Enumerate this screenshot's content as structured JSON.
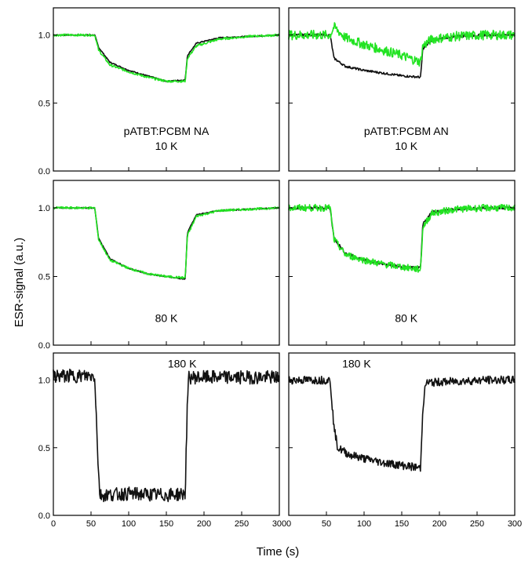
{
  "figure": {
    "xlabel": "Time (s)",
    "ylabel": "ESR-signal (a.u.)",
    "series_colors": {
      "black": "#111111",
      "green": "#22e322"
    }
  },
  "chart_data": [
    {
      "type": "line",
      "row": 0,
      "col": 0,
      "annotations": [
        "pATBT:PCBM NA",
        "10 K"
      ],
      "xlim": [
        0,
        300
      ],
      "ylim": [
        0,
        1.2
      ],
      "yticks": [
        "0.0",
        "0.5",
        "1.0"
      ],
      "xticks": [],
      "series": [
        {
          "color": "black",
          "noise": 0.004,
          "x": [
            0,
            55,
            60,
            75,
            100,
            125,
            150,
            175,
            178,
            190,
            220,
            260,
            300
          ],
          "y": [
            1.0,
            1.0,
            0.91,
            0.8,
            0.74,
            0.7,
            0.66,
            0.67,
            0.85,
            0.94,
            0.98,
            0.99,
            1.0
          ]
        },
        {
          "color": "green",
          "noise": 0.008,
          "x": [
            0,
            55,
            60,
            75,
            100,
            125,
            150,
            175,
            178,
            190,
            220,
            260,
            300
          ],
          "y": [
            1.0,
            1.0,
            0.89,
            0.78,
            0.73,
            0.69,
            0.66,
            0.66,
            0.83,
            0.92,
            0.97,
            0.99,
            1.0
          ]
        }
      ]
    },
    {
      "type": "line",
      "row": 0,
      "col": 1,
      "annotations": [
        "pATBT:PCBM AN",
        "10 K"
      ],
      "xlim": [
        0,
        300
      ],
      "ylim": [
        0,
        1.2
      ],
      "yticks": [],
      "xticks": [],
      "series": [
        {
          "color": "black",
          "noise": 0.008,
          "x": [
            0,
            55,
            60,
            75,
            100,
            125,
            150,
            175,
            178,
            190,
            220,
            260,
            300
          ],
          "y": [
            1.0,
            1.0,
            0.83,
            0.77,
            0.74,
            0.72,
            0.7,
            0.69,
            0.9,
            0.96,
            0.99,
            1.0,
            1.0
          ]
        },
        {
          "color": "green",
          "noise": 0.035,
          "x": [
            0,
            55,
            60,
            75,
            100,
            125,
            150,
            175,
            178,
            190,
            220,
            260,
            300
          ],
          "y": [
            1.0,
            1.0,
            1.06,
            0.98,
            0.93,
            0.89,
            0.85,
            0.8,
            0.92,
            0.97,
            0.99,
            1.0,
            1.0
          ]
        }
      ]
    },
    {
      "type": "line",
      "row": 1,
      "col": 0,
      "annotations": [
        "80 K"
      ],
      "xlim": [
        0,
        300
      ],
      "ylim": [
        0,
        1.2
      ],
      "yticks": [
        "0.0",
        "0.5",
        "1.0"
      ],
      "xticks": [],
      "series": [
        {
          "color": "black",
          "noise": 0.004,
          "x": [
            0,
            55,
            60,
            75,
            100,
            125,
            150,
            175,
            178,
            190,
            220,
            260,
            300
          ],
          "y": [
            1.0,
            1.0,
            0.78,
            0.63,
            0.56,
            0.52,
            0.5,
            0.48,
            0.82,
            0.95,
            0.98,
            0.99,
            1.0
          ]
        },
        {
          "color": "green",
          "noise": 0.008,
          "x": [
            0,
            55,
            60,
            75,
            100,
            125,
            150,
            175,
            178,
            190,
            220,
            260,
            300
          ],
          "y": [
            1.0,
            1.0,
            0.77,
            0.62,
            0.56,
            0.52,
            0.5,
            0.49,
            0.8,
            0.94,
            0.98,
            0.99,
            1.0
          ]
        }
      ]
    },
    {
      "type": "line",
      "row": 1,
      "col": 1,
      "annotations": [
        "80 K"
      ],
      "xlim": [
        0,
        300
      ],
      "ylim": [
        0,
        1.2
      ],
      "yticks": [],
      "xticks": [],
      "series": [
        {
          "color": "black",
          "noise": 0.01,
          "x": [
            0,
            55,
            60,
            75,
            100,
            125,
            150,
            175,
            178,
            190,
            220,
            260,
            300
          ],
          "y": [
            1.0,
            1.0,
            0.78,
            0.67,
            0.62,
            0.59,
            0.57,
            0.56,
            0.88,
            0.97,
            0.99,
            1.0,
            1.0
          ]
        },
        {
          "color": "green",
          "noise": 0.025,
          "x": [
            0,
            55,
            60,
            75,
            100,
            125,
            150,
            175,
            178,
            190,
            220,
            260,
            300
          ],
          "y": [
            1.0,
            1.0,
            0.77,
            0.66,
            0.62,
            0.59,
            0.57,
            0.55,
            0.86,
            0.96,
            0.99,
            1.0,
            1.0
          ]
        }
      ]
    },
    {
      "type": "line",
      "row": 2,
      "col": 0,
      "annotations": [
        "180 K"
      ],
      "xlim": [
        0,
        300
      ],
      "ylim": [
        0,
        1.2
      ],
      "yticks": [
        "0.0",
        "0.5",
        "1.0"
      ],
      "xticks": [
        "0",
        "50",
        "100",
        "150",
        "200",
        "250",
        "300"
      ],
      "series": [
        {
          "color": "black",
          "noise": 0.05,
          "x": [
            0,
            55,
            60,
            62,
            100,
            150,
            175,
            178,
            180,
            220,
            260,
            300
          ],
          "y": [
            1.03,
            1.03,
            0.3,
            0.15,
            0.16,
            0.15,
            0.16,
            0.85,
            1.02,
            1.02,
            1.02,
            1.02
          ]
        }
      ]
    },
    {
      "type": "line",
      "row": 2,
      "col": 1,
      "annotations": [
        "180 K"
      ],
      "xlim": [
        0,
        300
      ],
      "ylim": [
        0,
        1.2
      ],
      "yticks": [],
      "xticks": [
        "0",
        "50",
        "100",
        "150",
        "200",
        "250",
        "300"
      ],
      "series": [
        {
          "color": "black",
          "noise": 0.03,
          "x": [
            0,
            55,
            60,
            65,
            80,
            100,
            125,
            150,
            175,
            178,
            182,
            220,
            260,
            300
          ],
          "y": [
            1.0,
            1.0,
            0.65,
            0.5,
            0.45,
            0.42,
            0.39,
            0.37,
            0.35,
            0.8,
            0.98,
            0.99,
            1.0,
            1.0
          ]
        }
      ]
    }
  ]
}
